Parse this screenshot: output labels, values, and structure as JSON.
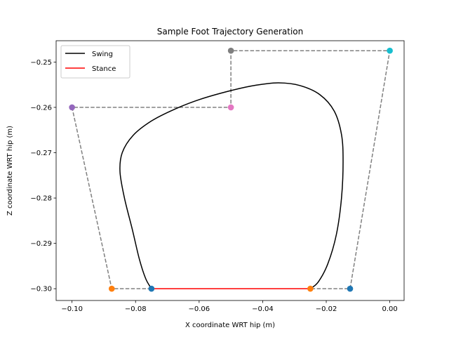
{
  "chart_data": {
    "type": "line",
    "title": "Sample Foot Trajectory Generation",
    "xlabel": "X coordinate WRT hip (m)",
    "ylabel": "Z coordinate WRT hip (m)",
    "xlim": [
      -0.105,
      0.0045
    ],
    "ylim": [
      -0.3026,
      -0.2453
    ],
    "xticks": [
      -0.1,
      -0.08,
      -0.06,
      -0.04,
      -0.02,
      0.0
    ],
    "xtick_labels": [
      "−0.10",
      "−0.08",
      "−0.06",
      "−0.04",
      "−0.02",
      "0.00"
    ],
    "yticks": [
      -0.25,
      -0.26,
      -0.27,
      -0.28,
      -0.29,
      -0.3
    ],
    "ytick_labels": [
      "−0.25",
      "−0.26",
      "−0.27",
      "−0.28",
      "−0.29",
      "−0.30"
    ],
    "legend": {
      "position": "top-left",
      "entries": [
        {
          "label": "Swing",
          "color": "#000000"
        },
        {
          "label": "Stance",
          "color": "#ff0000"
        }
      ]
    },
    "control_points": [
      {
        "x": -0.075,
        "y": -0.3,
        "color": "#1f77b4"
      },
      {
        "x": -0.0875,
        "y": -0.3,
        "color": "#ff7f0e"
      },
      {
        "x": -0.1,
        "y": -0.26,
        "color": "#9467bd"
      },
      {
        "x": -0.05,
        "y": -0.26,
        "color": "#e377c2"
      },
      {
        "x": -0.05,
        "y": -0.2475,
        "color": "#7f7f7f"
      },
      {
        "x": 0.0,
        "y": -0.2475,
        "color": "#17becf"
      },
      {
        "x": -0.0125,
        "y": -0.3,
        "color": "#1f77b4"
      },
      {
        "x": -0.025,
        "y": -0.3,
        "color": "#ff7f0e"
      }
    ],
    "series": [
      {
        "name": "Swing",
        "color": "#000000",
        "points": [
          [
            -0.025,
            -0.3
          ],
          [
            -0.0225,
            -0.2985
          ],
          [
            -0.0195,
            -0.2945
          ],
          [
            -0.0168,
            -0.288
          ],
          [
            -0.0152,
            -0.28
          ],
          [
            -0.0147,
            -0.272
          ],
          [
            -0.0152,
            -0.266
          ],
          [
            -0.0175,
            -0.2608
          ],
          [
            -0.022,
            -0.2572
          ],
          [
            -0.0282,
            -0.2552
          ],
          [
            -0.035,
            -0.2546
          ],
          [
            -0.042,
            -0.2551
          ],
          [
            -0.05,
            -0.2563
          ],
          [
            -0.06,
            -0.2583
          ],
          [
            -0.068,
            -0.2605
          ],
          [
            -0.075,
            -0.263
          ],
          [
            -0.0808,
            -0.2662
          ],
          [
            -0.0842,
            -0.27
          ],
          [
            -0.0849,
            -0.2742
          ],
          [
            -0.0835,
            -0.28
          ],
          [
            -0.081,
            -0.287
          ],
          [
            -0.0788,
            -0.2935
          ],
          [
            -0.0768,
            -0.2978
          ],
          [
            -0.075,
            -0.3
          ]
        ]
      },
      {
        "name": "Stance",
        "color": "#ff0000",
        "points": [
          [
            -0.075,
            -0.3
          ],
          [
            -0.025,
            -0.3
          ]
        ]
      }
    ]
  }
}
